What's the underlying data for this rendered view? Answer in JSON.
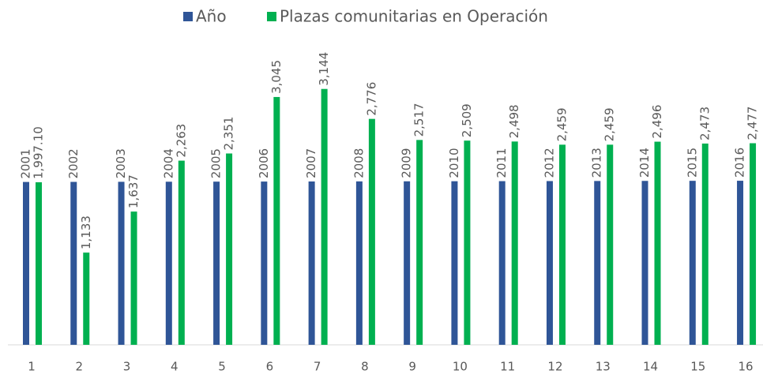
{
  "chart_data": {
    "type": "bar",
    "categories": [
      "1",
      "2",
      "3",
      "4",
      "5",
      "6",
      "7",
      "8",
      "9",
      "10",
      "11",
      "12",
      "13",
      "14",
      "15",
      "16"
    ],
    "series": [
      {
        "name": "Año",
        "color": "#2f5597",
        "values": [
          2001,
          2002,
          2003,
          2004,
          2005,
          2006,
          2007,
          2008,
          2009,
          2010,
          2011,
          2012,
          2013,
          2014,
          2015,
          2016
        ]
      },
      {
        "name": "Plazas comunitarias en Operación",
        "color": "#00b050",
        "values": [
          1997.1,
          1133,
          1637,
          2263,
          2351,
          3045,
          3144,
          2776,
          2517,
          2509,
          2498,
          2459,
          2459,
          2496,
          2473,
          2477
        ],
        "value_labels": [
          "1,997.10",
          "1,133",
          "1,637",
          "2,263",
          "2,351",
          "3,045",
          "3,144",
          "2,776",
          "2,517",
          "2,509",
          "2,498",
          "2,459",
          "2,459",
          "2,496",
          "2,473",
          "2,477"
        ]
      }
    ],
    "ylim": [
      0,
      3500
    ],
    "legend": "top"
  }
}
